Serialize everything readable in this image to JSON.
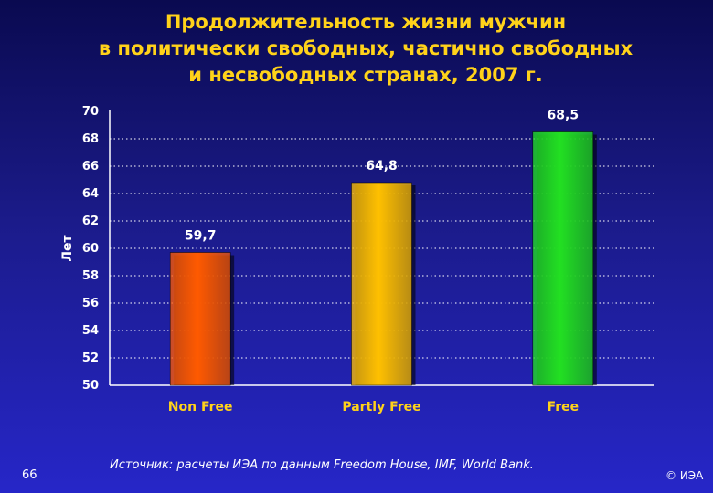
{
  "slide": {
    "title_lines": [
      "Продолжительность жизни мужчин",
      "в политически свободных, частично свободных",
      "и несвободных странах, 2007 г."
    ],
    "page_number": "66",
    "source": "Источник: расчеты ИЭА по данным Freedom House, IMF, World Bank.",
    "copyright": "© ИЭА"
  },
  "chart_data": {
    "type": "bar",
    "title": "Продолжительность жизни мужчин в политически свободных, частично свободных и несвободных странах, 2007 г.",
    "categories": [
      "Non Free",
      "Partly Free",
      "Free"
    ],
    "values": [
      59.7,
      64.8,
      68.5
    ],
    "value_labels": [
      "59,7",
      "64,8",
      "68,5"
    ],
    "ylabel": "Лет",
    "xlabel": "",
    "ylim": [
      50,
      70
    ],
    "yticks": [
      50,
      52,
      54,
      56,
      58,
      60,
      62,
      64,
      66,
      68,
      70
    ],
    "grid": true,
    "bar_colors": [
      "#ff5a00",
      "#ffc000",
      "#22e022"
    ],
    "label_color": "#ffffff",
    "tick_color": "#ffffff",
    "category_color": "#ffd21a"
  }
}
